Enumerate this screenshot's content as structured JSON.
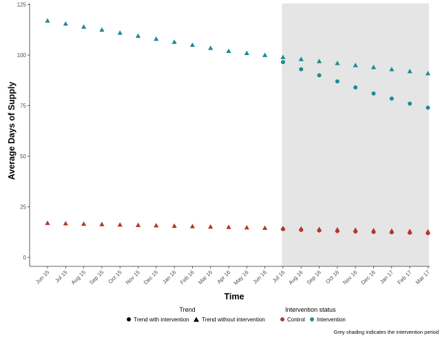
{
  "chart_data": {
    "type": "scatter",
    "xlabel": "Time",
    "ylabel": "Average Days of Supply",
    "ylim": [
      0,
      125
    ],
    "yticks": [
      "0",
      "25",
      "50",
      "75",
      "100",
      "125"
    ],
    "grid": false,
    "categories": [
      "Jun 15",
      "Jul 15",
      "Aug 15",
      "Sep 15",
      "Oct 15",
      "Nov 15",
      "Dec 15",
      "Jan 16",
      "Feb 16",
      "Mar 16",
      "Apr 16",
      "May 16",
      "Jun 16",
      "Jul 16",
      "Aug 16",
      "Sep 16",
      "Oct 16",
      "Nov 16",
      "Dec 16",
      "Jan 17",
      "Feb 17",
      "Mar 17"
    ],
    "intervention_period": {
      "start": "Jul 16",
      "end": "Mar 17",
      "color": "#e5e5e5"
    },
    "series": [
      {
        "status": "Intervention",
        "trend": "Trend without intervention",
        "shape": "triangle",
        "color": "#1f8a92",
        "x": [
          "Jun 15",
          "Jul 15",
          "Aug 15",
          "Sep 15",
          "Oct 15",
          "Nov 15",
          "Dec 15",
          "Jan 16",
          "Feb 16",
          "Mar 16",
          "Apr 16",
          "May 16",
          "Jun 16",
          "Jul 16",
          "Aug 16",
          "Sep 16",
          "Oct 16",
          "Nov 16",
          "Dec 16",
          "Jan 17",
          "Feb 17",
          "Mar 17"
        ],
        "values": [
          117,
          115.5,
          114,
          112.5,
          111,
          109.5,
          108,
          106.5,
          105,
          103.5,
          102,
          101,
          100,
          99,
          98,
          97,
          96,
          95,
          94,
          93,
          92,
          91
        ]
      },
      {
        "status": "Intervention",
        "trend": "Trend with intervention",
        "shape": "circle",
        "color": "#1f8a92",
        "x": [
          "Jul 16",
          "Aug 16",
          "Sep 16",
          "Oct 16",
          "Nov 16",
          "Dec 16",
          "Jan 17",
          "Feb 17",
          "Mar 17"
        ],
        "values": [
          96.5,
          93,
          90,
          87,
          84,
          81,
          78.5,
          76,
          74
        ]
      },
      {
        "status": "Control",
        "trend": "Trend without intervention",
        "shape": "triangle",
        "color": "#b5362a",
        "x": [
          "Jun 15",
          "Jul 15",
          "Aug 15",
          "Sep 15",
          "Oct 15",
          "Nov 15",
          "Dec 15",
          "Jan 16",
          "Feb 16",
          "Mar 16",
          "Apr 16",
          "May 16",
          "Jun 16",
          "Jul 16",
          "Aug 16",
          "Sep 16",
          "Oct 16",
          "Nov 16",
          "Dec 16",
          "Jan 17",
          "Feb 17",
          "Mar 17"
        ],
        "values": [
          17,
          16.8,
          16.6,
          16.4,
          16.2,
          16,
          15.8,
          15.6,
          15.4,
          15.2,
          15,
          14.8,
          14.6,
          14.4,
          14.2,
          14,
          13.8,
          13.6,
          13.4,
          13.2,
          13,
          12.8
        ]
      },
      {
        "status": "Control",
        "trend": "Trend with intervention",
        "shape": "circle",
        "color": "#b5362a",
        "x": [
          "Jul 16",
          "Aug 16",
          "Sep 16",
          "Oct 16",
          "Nov 16",
          "Dec 16",
          "Jan 17",
          "Feb 17",
          "Mar 17"
        ],
        "values": [
          14,
          13.6,
          13.3,
          13,
          12.8,
          12.6,
          12.4,
          12.2,
          12
        ]
      }
    ],
    "legend": {
      "placement": "bottom",
      "trend_title": "Trend",
      "trend_items": [
        {
          "label": "Trend with intervention",
          "shape": "circle"
        },
        {
          "label": "Trend without intervention",
          "shape": "triangle"
        }
      ],
      "status_title": "Intervention status",
      "status_items": [
        {
          "label": "Control",
          "color": "#b5362a"
        },
        {
          "label": "Intervention",
          "color": "#1f8a92"
        }
      ]
    },
    "caption": "Grey shading indicates the intervention period"
  }
}
